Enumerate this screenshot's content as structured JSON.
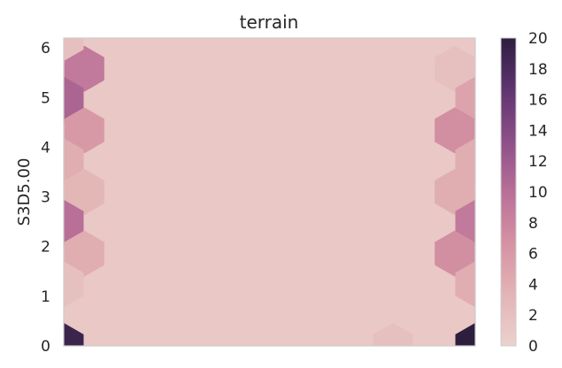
{
  "chart_data": {
    "type": "hexbin",
    "title": "terrain",
    "xlabel": "",
    "ylabel": "S3D5.00",
    "xlim": [
      0,
      1
    ],
    "ylim": [
      0,
      6.2
    ],
    "yticks": [
      0,
      1,
      2,
      3,
      4,
      5,
      6
    ],
    "grid": false,
    "colorbar": {
      "range": [
        0,
        20
      ],
      "ticks": [
        0,
        2,
        4,
        6,
        8,
        10,
        12,
        14,
        16,
        18,
        20
      ],
      "colors": [
        "#ebd1cc",
        "#e3b4b5",
        "#d592a3",
        "#b86f98",
        "#8d4f88",
        "#5e3471",
        "#2d1e3e"
      ]
    },
    "background_count": 1,
    "hexes": [
      {
        "x": 0.05,
        "y": 5.58,
        "count": 9
      },
      {
        "x": 0.0,
        "y": 4.96,
        "count": 11
      },
      {
        "x": 0.05,
        "y": 4.34,
        "count": 6
      },
      {
        "x": 0.0,
        "y": 3.72,
        "count": 4
      },
      {
        "x": 0.05,
        "y": 3.1,
        "count": 3
      },
      {
        "x": 0.0,
        "y": 2.48,
        "count": 10
      },
      {
        "x": 0.05,
        "y": 1.86,
        "count": 4
      },
      {
        "x": 0.0,
        "y": 1.24,
        "count": 2
      },
      {
        "x": 0.0,
        "y": 0.0,
        "count": 19
      },
      {
        "x": 0.0,
        "y": 6.2,
        "count": 2
      },
      {
        "x": 0.95,
        "y": 5.58,
        "count": 2
      },
      {
        "x": 1.0,
        "y": 4.96,
        "count": 5
      },
      {
        "x": 0.95,
        "y": 4.34,
        "count": 7
      },
      {
        "x": 1.0,
        "y": 3.72,
        "count": 4
      },
      {
        "x": 0.95,
        "y": 3.1,
        "count": 4
      },
      {
        "x": 1.0,
        "y": 2.48,
        "count": 9
      },
      {
        "x": 0.95,
        "y": 1.86,
        "count": 7
      },
      {
        "x": 1.0,
        "y": 1.24,
        "count": 4
      },
      {
        "x": 1.0,
        "y": 0.0,
        "count": 20
      },
      {
        "x": 0.8,
        "y": 0.0,
        "count": 2
      }
    ]
  }
}
